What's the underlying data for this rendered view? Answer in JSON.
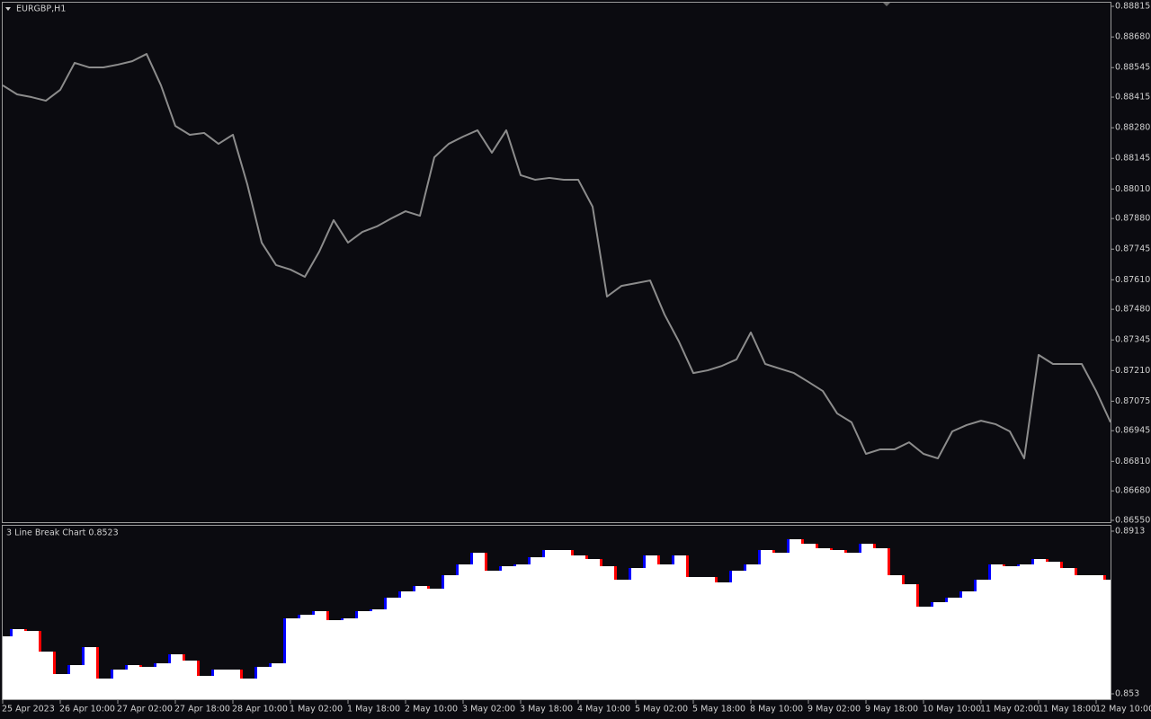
{
  "chart_data": [
    {
      "type": "line",
      "title": "EURGBP,H1",
      "color": "#8c8c8c",
      "ylim": [
        0.86542,
        0.88831
      ],
      "yticks": [
        {
          "value": 0.88815,
          "label": "0.88815"
        },
        {
          "value": 0.8868,
          "label": "0.88680"
        },
        {
          "value": 0.88545,
          "label": "0.88545"
        },
        {
          "value": 0.88415,
          "label": "0.88415"
        },
        {
          "value": 0.8828,
          "label": "0.88280"
        },
        {
          "value": 0.88145,
          "label": "0.88145"
        },
        {
          "value": 0.8801,
          "label": "0.88010"
        },
        {
          "value": 0.8788,
          "label": "0.87880"
        },
        {
          "value": 0.87745,
          "label": "0.87745"
        },
        {
          "value": 0.8761,
          "label": "0.87610"
        },
        {
          "value": 0.8748,
          "label": "0.87480"
        },
        {
          "value": 0.87345,
          "label": "0.87345"
        },
        {
          "value": 0.8721,
          "label": "0.87210"
        },
        {
          "value": 0.87075,
          "label": "0.87075"
        },
        {
          "value": 0.86945,
          "label": "0.86945"
        },
        {
          "value": 0.8681,
          "label": "0.86810"
        },
        {
          "value": 0.8668,
          "label": "0.86680"
        },
        {
          "value": 0.8655,
          "label": "0.86550"
        }
      ],
      "values": [
        0.88467,
        0.88427,
        0.88415,
        0.88399,
        0.88447,
        0.88566,
        0.88546,
        0.88546,
        0.88558,
        0.88573,
        0.88605,
        0.88467,
        0.88288,
        0.88249,
        0.88257,
        0.88209,
        0.88249,
        0.88031,
        0.87774,
        0.87675,
        0.87655,
        0.87623,
        0.87734,
        0.87873,
        0.87774,
        0.87821,
        0.87845,
        0.8788,
        0.87912,
        0.87892,
        0.8815,
        0.88209,
        0.88241,
        0.88269,
        0.8817,
        0.88269,
        0.88071,
        0.88051,
        0.88059,
        0.88051,
        0.88051,
        0.87932,
        0.87536,
        0.87583,
        0.87595,
        0.87607,
        0.87457,
        0.87338,
        0.87199,
        0.87211,
        0.87231,
        0.87259,
        0.87378,
        0.87239,
        0.87219,
        0.87199,
        0.8716,
        0.8712,
        0.87021,
        0.86982,
        0.86843,
        0.86863,
        0.86863,
        0.86894,
        0.86843,
        0.86823,
        0.86942,
        0.8697,
        0.86989,
        0.86974,
        0.86942,
        0.86823,
        0.87279,
        0.87239,
        0.87239,
        0.87239,
        0.8712,
        0.86982
      ]
    },
    {
      "type": "linebreak",
      "title": "3 Line Break Chart 0.8523",
      "color": "#ffffff",
      "up_color": "#0000ff",
      "down_color": "#ff0000",
      "ylim": [
        0.85173,
        0.89257
      ],
      "yticks": [
        0.8913,
        0.853
      ],
      "categories": [
        "25 Apr 2023",
        null,
        null,
        null,
        "26 Apr 10:00",
        null,
        null,
        null,
        "27 Apr 02:00",
        null,
        null,
        null,
        "27 Apr 18:00",
        null,
        null,
        null,
        "28 Apr 10:00",
        null,
        null,
        null,
        "1 May 02:00",
        null,
        null,
        null,
        "1 May 18:00",
        null,
        null,
        null,
        "2 May 10:00",
        null,
        null,
        null,
        "3 May 02:00",
        null,
        null,
        null,
        "3 May 18:00",
        null,
        null,
        null,
        "4 May 10:00",
        null,
        null,
        null,
        "5 May 02:00",
        null,
        null,
        null,
        "5 May 18:00",
        null,
        null,
        null,
        "8 May 10:00",
        null,
        null,
        null,
        "9 May 02:00",
        null,
        null,
        null,
        "9 May 18:00",
        null,
        null,
        null,
        "10 May 10:00",
        null,
        null,
        null,
        "11 May 02:00",
        null,
        null,
        null,
        "11 May 18:00",
        null,
        null,
        null,
        "12 May 10:00",
        null
      ],
      "values": [
        0.86654,
        0.86824,
        0.86781,
        0.86295,
        0.85766,
        0.85977,
        0.864,
        0.8566,
        0.85871,
        0.85977,
        0.85935,
        0.86019,
        0.86231,
        0.86083,
        0.85723,
        0.85871,
        0.85871,
        0.8566,
        0.85935,
        0.86019,
        0.87077,
        0.87162,
        0.87247,
        0.87035,
        0.87077,
        0.87247,
        0.87289,
        0.87564,
        0.87712,
        0.87839,
        0.87776,
        0.88093,
        0.88347,
        0.88622,
        0.88199,
        0.88305,
        0.88347,
        0.88516,
        0.88686,
        0.88686,
        0.88559,
        0.88474,
        0.88305,
        0.87987,
        0.88262,
        0.88559,
        0.88347,
        0.88559,
        0.88051,
        0.88051,
        0.87924,
        0.88199,
        0.88347,
        0.88686,
        0.88622,
        0.8894,
        0.88834,
        0.88728,
        0.88686,
        0.88622,
        0.88834,
        0.88728,
        0.88093,
        0.87881,
        0.87352,
        0.87458,
        0.87564,
        0.87712,
        0.87987,
        0.88347,
        0.88305,
        0.88347,
        0.88474,
        0.8841,
        0.88262,
        0.88093,
        0.88093,
        0.87987
      ]
    }
  ]
}
